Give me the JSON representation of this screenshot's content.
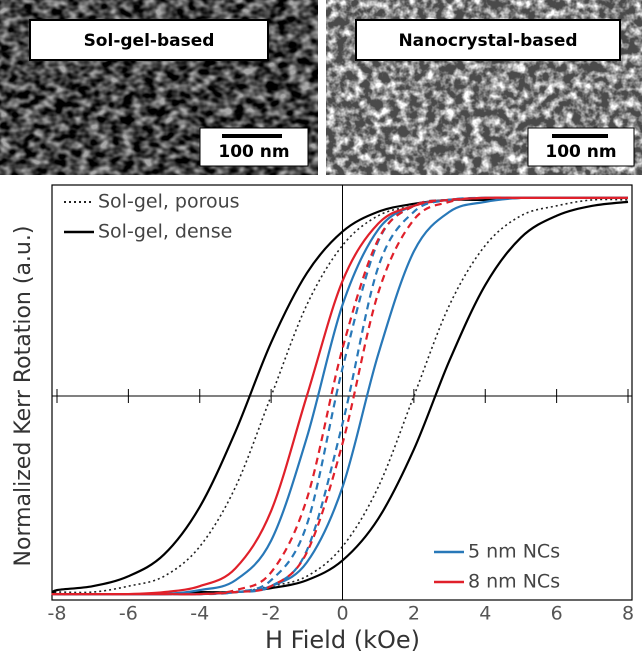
{
  "images": [
    {
      "label": "Sol-gel-based",
      "scale_bar": "100 nm"
    },
    {
      "label": "Nanocrystal-based",
      "scale_bar": "100 nm"
    }
  ],
  "chart_data": {
    "type": "line",
    "x_label": "H Field (kOe)",
    "y_label": "Normalized Kerr Rotation (a.u.)",
    "x": [
      8,
      7,
      6,
      5,
      4,
      3,
      2,
      1,
      0,
      -1,
      -2,
      -3,
      -4,
      -5,
      -6,
      -7,
      -8,
      -8,
      -7,
      -6,
      -5,
      -4,
      -3,
      -2,
      -1,
      0,
      1,
      2,
      3,
      4,
      5,
      6,
      7,
      8
    ],
    "xlim": [
      -8,
      8
    ],
    "xticks": [
      -8,
      -6,
      -4,
      -2,
      0,
      2,
      4,
      6,
      8
    ],
    "ylim": [
      -1.05,
      1.05
    ],
    "series": [
      {
        "name": "Sol-gel, porous",
        "color": "#222222",
        "dash": "dotted",
        "legend": "upper left",
        "values": [
          1,
          1,
          1,
          1,
          0.99,
          0.99,
          0.96,
          0.91,
          0.76,
          0.46,
          0,
          -0.46,
          -0.76,
          -0.91,
          -0.96,
          -0.99,
          -0.99,
          -1,
          -1,
          -1,
          -1,
          -0.99,
          -0.99,
          -0.96,
          -0.91,
          -0.76,
          -0.46,
          0,
          0.46,
          0.76,
          0.91,
          0.96,
          0.99,
          0.99
        ]
      },
      {
        "name": "Sol-gel, dense",
        "color": "#000000",
        "dash": "solid",
        "legend": "upper left",
        "values": [
          1,
          1,
          1,
          1,
          0.99,
          0.99,
          0.97,
          0.93,
          0.83,
          0.62,
          0.27,
          -0.18,
          -0.56,
          -0.8,
          -0.91,
          -0.96,
          -0.98,
          -1,
          -1,
          -1,
          -1,
          -0.99,
          -0.99,
          -0.97,
          -0.93,
          -0.83,
          -0.62,
          -0.27,
          0.18,
          0.56,
          0.8,
          0.91,
          0.96,
          0.98
        ]
      },
      {
        "name": "5 nm NCs",
        "color": "#2878b8",
        "dash": "solid",
        "legend": "lower right",
        "values": [
          1,
          1,
          1,
          1,
          1,
          0.99,
          0.96,
          0.84,
          0.46,
          -0.21,
          -0.73,
          -0.93,
          -0.98,
          -1,
          -1,
          -1,
          -1,
          -1,
          -1,
          -1,
          -1,
          -1,
          -0.99,
          -0.96,
          -0.84,
          -0.46,
          0.21,
          0.73,
          0.93,
          0.98,
          1,
          1,
          1,
          1
        ]
      },
      {
        "name": "8 nm NCs",
        "color": "#e0202a",
        "dash": "solid",
        "legend": "lower right",
        "values": [
          1,
          1,
          1,
          1,
          1,
          0.99,
          0.96,
          0.87,
          0.58,
          0,
          -0.58,
          -0.87,
          -0.96,
          -0.99,
          -1,
          -1,
          -1,
          -1,
          -1,
          -1,
          -0.99,
          -0.96,
          -0.87,
          -0.58,
          0,
          0.58,
          0.87,
          0.96,
          0.99,
          1,
          1,
          1,
          1,
          1
        ]
      },
      {
        "color": "#2878b8",
        "dash": "dashed",
        "values": [
          1,
          1,
          1,
          1,
          1,
          0.99,
          0.96,
          0.78,
          0.14,
          -0.65,
          -0.93,
          -0.99,
          -1,
          -1,
          -1,
          -1,
          -1,
          -1,
          -1,
          -1,
          -1,
          -1,
          -0.99,
          -0.96,
          -0.78,
          -0.14,
          0.65,
          0.93,
          0.99,
          1,
          1,
          1,
          1,
          1
        ]
      },
      {
        "color": "#e0202a",
        "dash": "dashed",
        "values": [
          1,
          1,
          1,
          1,
          1,
          0.99,
          0.96,
          0.79,
          0.24,
          -0.52,
          -0.89,
          -0.98,
          -1,
          -1,
          -1,
          -1,
          -1,
          -1,
          -1,
          -1,
          -1,
          -1,
          -0.99,
          -0.96,
          -0.79,
          -0.24,
          0.52,
          0.89,
          0.98,
          1,
          1,
          1,
          1,
          1
        ]
      }
    ]
  }
}
